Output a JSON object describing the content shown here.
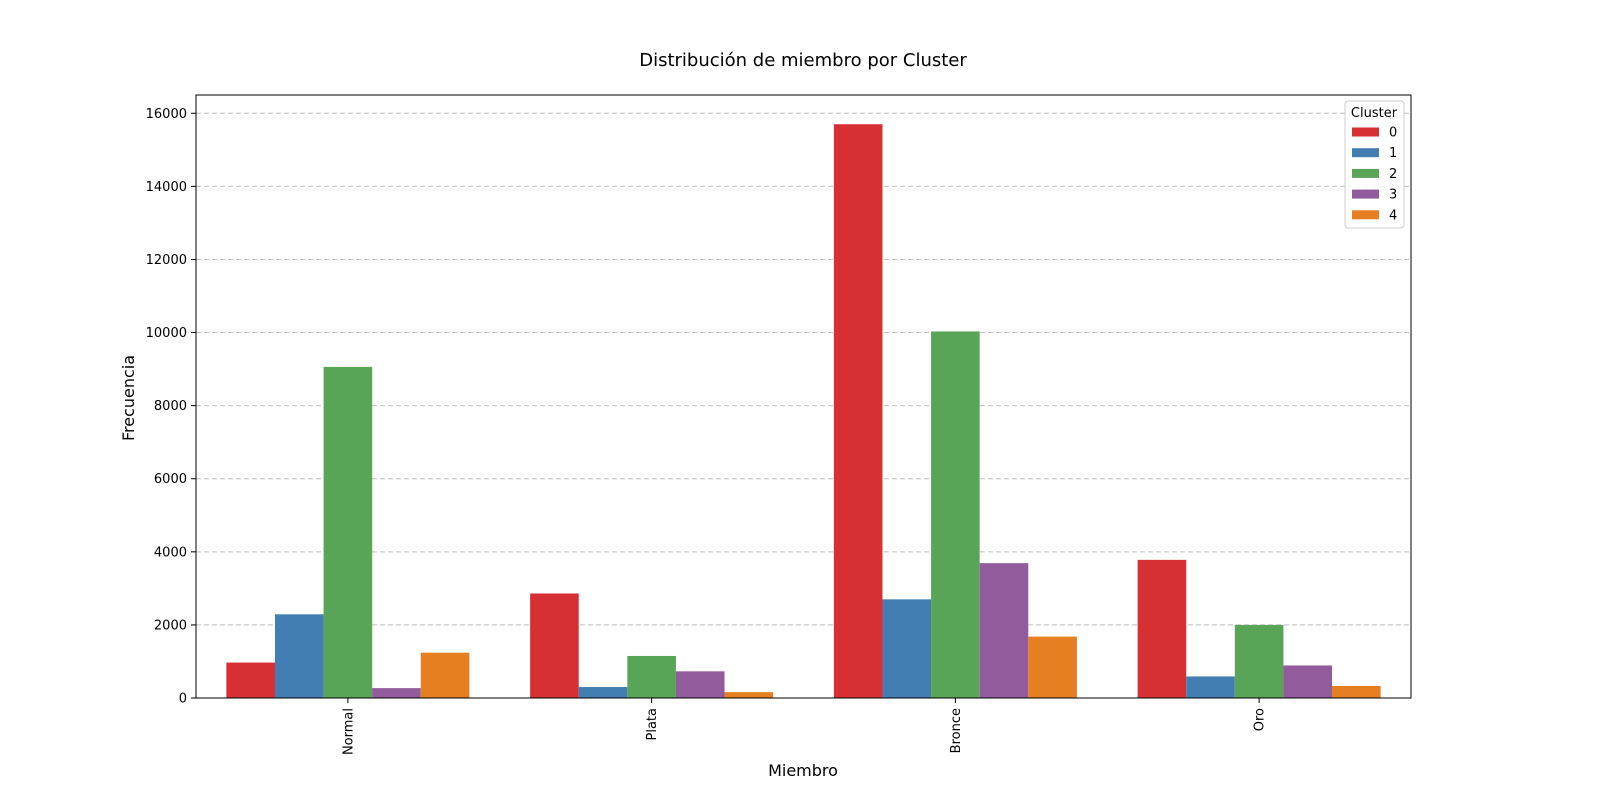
{
  "chart_data": {
    "type": "bar",
    "title": "Distribución de miembro por Cluster",
    "xlabel": "Miembro",
    "ylabel": "Frecuencia",
    "categories": [
      "Normal",
      "Plata",
      "Bronce",
      "Oro"
    ],
    "ylim": [
      0,
      16500
    ],
    "yticks": [
      0,
      2000,
      4000,
      6000,
      8000,
      10000,
      12000,
      14000,
      16000
    ],
    "grid": "y-dashed",
    "legend": {
      "title": "Cluster",
      "placement": "top-right"
    },
    "series": [
      {
        "name": "0",
        "color": "#d62f34",
        "values": [
          970,
          2860,
          15700,
          3780
        ]
      },
      {
        "name": "1",
        "color": "#437eb2",
        "values": [
          2290,
          300,
          2700,
          590
        ]
      },
      {
        "name": "2",
        "color": "#58a558",
        "values": [
          9060,
          1150,
          10030,
          2000
        ]
      },
      {
        "name": "3",
        "color": "#925b9b",
        "values": [
          270,
          730,
          3690,
          890
        ]
      },
      {
        "name": "4",
        "color": "#e67e22",
        "values": [
          1240,
          160,
          1680,
          330
        ]
      }
    ]
  }
}
